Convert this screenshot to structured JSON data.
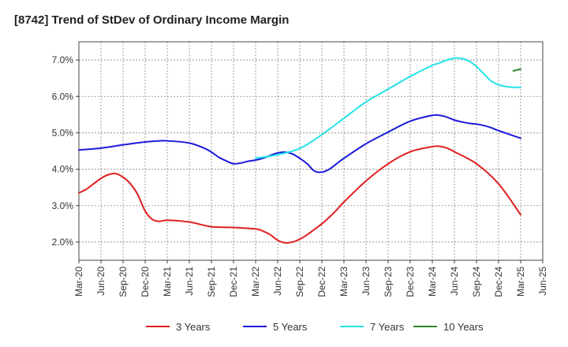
{
  "chart_data": {
    "type": "line",
    "title": "[8742]  Trend of StDev of Ordinary Income Margin",
    "xlabel": "",
    "ylabel": "",
    "ylim": [
      1.5,
      7.5
    ],
    "yticks": [
      2.0,
      3.0,
      4.0,
      5.0,
      6.0,
      7.0
    ],
    "ytick_labels": [
      "2.0%",
      "3.0%",
      "4.0%",
      "5.0%",
      "6.0%",
      "7.0%"
    ],
    "x_tick_labels": [
      "Mar-20",
      "Jun-20",
      "Sep-20",
      "Dec-20",
      "Mar-21",
      "Jun-21",
      "Sep-21",
      "Dec-21",
      "Mar-22",
      "Jun-22",
      "Sep-22",
      "Dec-22",
      "Mar-23",
      "Jun-23",
      "Sep-23",
      "Dec-23",
      "Mar-24",
      "Jun-24",
      "Sep-24",
      "Dec-24",
      "Mar-25",
      "Jun-25"
    ],
    "grid": true,
    "legend_position": "bottom",
    "series": [
      {
        "name": "3 Years",
        "color": "#e02020",
        "x": [
          "Mar-20",
          "Apr-20",
          "May-20",
          "Jun-20",
          "Jul-20",
          "Aug-20",
          "Sep-20",
          "Oct-20",
          "Nov-20",
          "Dec-20",
          "Jan-21",
          "Feb-21",
          "Mar-21",
          "Jun-21",
          "Sep-21",
          "Dec-21",
          "Mar-22",
          "Apr-22",
          "May-22",
          "Jun-22",
          "Jul-22",
          "Aug-22",
          "Sep-22",
          "Oct-22",
          "Nov-22",
          "Dec-22",
          "Jan-23",
          "Feb-23",
          "Mar-23",
          "Jun-23",
          "Sep-23",
          "Dec-23",
          "Mar-24",
          "Apr-24",
          "May-24",
          "Jun-24",
          "Sep-24",
          "Dec-24",
          "Mar-25"
        ],
        "values": [
          3.35,
          3.45,
          3.6,
          3.75,
          3.85,
          3.88,
          3.78,
          3.6,
          3.3,
          2.85,
          2.62,
          2.57,
          2.6,
          2.55,
          2.42,
          2.4,
          2.36,
          2.3,
          2.2,
          2.05,
          1.98,
          2.0,
          2.08,
          2.2,
          2.35,
          2.5,
          2.68,
          2.88,
          3.1,
          3.68,
          4.15,
          4.48,
          4.62,
          4.63,
          4.58,
          4.48,
          4.15,
          3.6,
          2.75
        ]
      },
      {
        "name": "5 Years",
        "color": "#1a1adc",
        "x": [
          "Mar-20",
          "Jun-20",
          "Sep-20",
          "Dec-20",
          "Feb-21",
          "Mar-21",
          "Jun-21",
          "Aug-21",
          "Sep-21",
          "Oct-21",
          "Nov-21",
          "Dec-21",
          "Jan-22",
          "Feb-22",
          "Mar-22",
          "Apr-22",
          "May-22",
          "Jun-22",
          "Jul-22",
          "Aug-22",
          "Sep-22",
          "Oct-22",
          "Nov-22",
          "Dec-22",
          "Jan-23",
          "Feb-23",
          "Mar-23",
          "Jun-23",
          "Sep-23",
          "Dec-23",
          "Mar-24",
          "Apr-24",
          "May-24",
          "Jun-24",
          "Jul-24",
          "Aug-24",
          "Sep-24",
          "Oct-24",
          "Nov-24",
          "Dec-24",
          "Mar-25"
        ],
        "values": [
          4.53,
          4.58,
          4.67,
          4.75,
          4.78,
          4.78,
          4.72,
          4.58,
          4.47,
          4.33,
          4.23,
          4.15,
          4.17,
          4.22,
          4.25,
          4.3,
          4.38,
          4.45,
          4.47,
          4.42,
          4.3,
          4.15,
          3.95,
          3.92,
          4.0,
          4.15,
          4.3,
          4.7,
          5.02,
          5.32,
          5.48,
          5.48,
          5.43,
          5.35,
          5.3,
          5.26,
          5.24,
          5.2,
          5.14,
          5.06,
          4.85
        ]
      },
      {
        "name": "7 Years",
        "color": "#22e2e8",
        "x": [
          "Mar-22",
          "Jun-22",
          "Sep-22",
          "Dec-22",
          "Mar-23",
          "Jun-23",
          "Sep-23",
          "Dec-23",
          "Mar-24",
          "Apr-24",
          "May-24",
          "Jun-24",
          "Jul-24",
          "Aug-24",
          "Sep-24",
          "Oct-24",
          "Nov-24",
          "Dec-24",
          "Jan-25",
          "Feb-25",
          "Mar-25"
        ],
        "values": [
          4.3,
          4.4,
          4.57,
          4.95,
          5.4,
          5.85,
          6.2,
          6.55,
          6.85,
          6.92,
          7.0,
          7.05,
          7.04,
          6.97,
          6.82,
          6.62,
          6.42,
          6.32,
          6.27,
          6.25,
          6.25
        ]
      },
      {
        "name": "10 Years",
        "color": "#2a8a2a",
        "x": [
          "Feb-25",
          "Mar-25"
        ],
        "values": [
          6.7,
          6.75
        ]
      }
    ]
  }
}
